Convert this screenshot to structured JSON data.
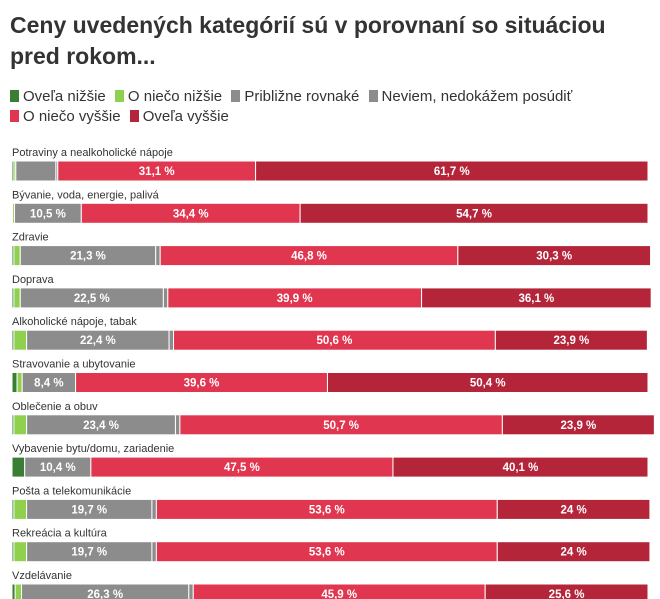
{
  "title": "Ceny uvedených kategórií sú v porovnaní so situáciou pred rokom...",
  "legend": [
    {
      "label": "Oveľa nižšie",
      "color": "#3a7d34"
    },
    {
      "label": "O niečo nižšie",
      "color": "#8fd04e"
    },
    {
      "label": "Približne rovnaké",
      "color": "#8c8c8c"
    },
    {
      "label": "Neviem, nedokážem posúdiť",
      "color": "#8c8c8c"
    },
    {
      "label": "O niečo vyššie",
      "color": "#e0364f"
    },
    {
      "label": "Oveľa vyššie",
      "color": "#b4253a"
    }
  ],
  "chart_data": {
    "type": "bar",
    "orientation": "horizontal",
    "stacked": true,
    "title": "Ceny uvedených kategórií sú v porovnaní so situáciou pred rokom...",
    "xlim": [
      0,
      100
    ],
    "categories": [
      "Potraviny a nealkoholické nápoje",
      "Bývanie, voda, energie, palivá",
      "Zdravie",
      "Doprava",
      "Alkoholické nápoje, tabak",
      "Stravovanie a ubytovanie",
      "Oblečenie a obuv",
      "Vybavenie bytu/domu, zariadenie",
      "Pošta a telekomunikácie",
      "Rekreácia a kultúra",
      "Vzdelávanie"
    ],
    "series": [
      {
        "name": "Oveľa nižšie",
        "color": "#3a7d34",
        "values": [
          0.3,
          0.1,
          0.3,
          0.3,
          0.3,
          0.8,
          0.3,
          2.0,
          0.3,
          0.3,
          0.5
        ]
      },
      {
        "name": "O niečo nižšie",
        "color": "#8fd04e",
        "values": [
          0.3,
          0.3,
          1.0,
          1.0,
          2.0,
          0.8,
          2.0,
          0.0,
          2.0,
          2.0,
          1.0
        ]
      },
      {
        "name": "Približne rovnaké",
        "color": "#8c8c8c",
        "values": [
          6.3,
          10.5,
          21.3,
          22.5,
          22.4,
          8.4,
          23.4,
          10.4,
          19.7,
          19.7,
          26.3
        ],
        "labels": [
          "",
          "10,5 %",
          "21,3 %",
          "22,5 %",
          "22,4 %",
          "8,4 %",
          "23,4 %",
          "10,4 %",
          "19,7 %",
          "19,7 %",
          "26,3 %"
        ]
      },
      {
        "name": "Neviem, nedokážem posúdiť",
        "color": "#8c8c8c",
        "values": [
          0.3,
          0.0,
          0.7,
          0.7,
          0.7,
          0.0,
          0.7,
          0.0,
          0.7,
          0.7,
          0.7
        ]
      },
      {
        "name": "O niečo vyššie",
        "color": "#e0364f",
        "values": [
          31.1,
          34.4,
          46.8,
          39.9,
          50.6,
          39.6,
          50.7,
          47.5,
          53.6,
          53.6,
          45.9
        ],
        "labels": [
          "31,1 %",
          "34,4 %",
          "46,8 %",
          "39,9 %",
          "50,6 %",
          "39,6 %",
          "50,7 %",
          "47,5 %",
          "53,6 %",
          "53,6 %",
          "45,9 %"
        ]
      },
      {
        "name": "Oveľa vyššie",
        "color": "#b4253a",
        "values": [
          61.7,
          54.7,
          30.3,
          36.1,
          23.9,
          50.4,
          23.9,
          40.1,
          24.0,
          24.0,
          25.6
        ],
        "labels": [
          "61,7 %",
          "54,7 %",
          "30,3 %",
          "36,1 %",
          "23,9 %",
          "50,4 %",
          "23,9 %",
          "40,1 %",
          "24 %",
          "24 %",
          "25,6 %"
        ]
      }
    ]
  }
}
